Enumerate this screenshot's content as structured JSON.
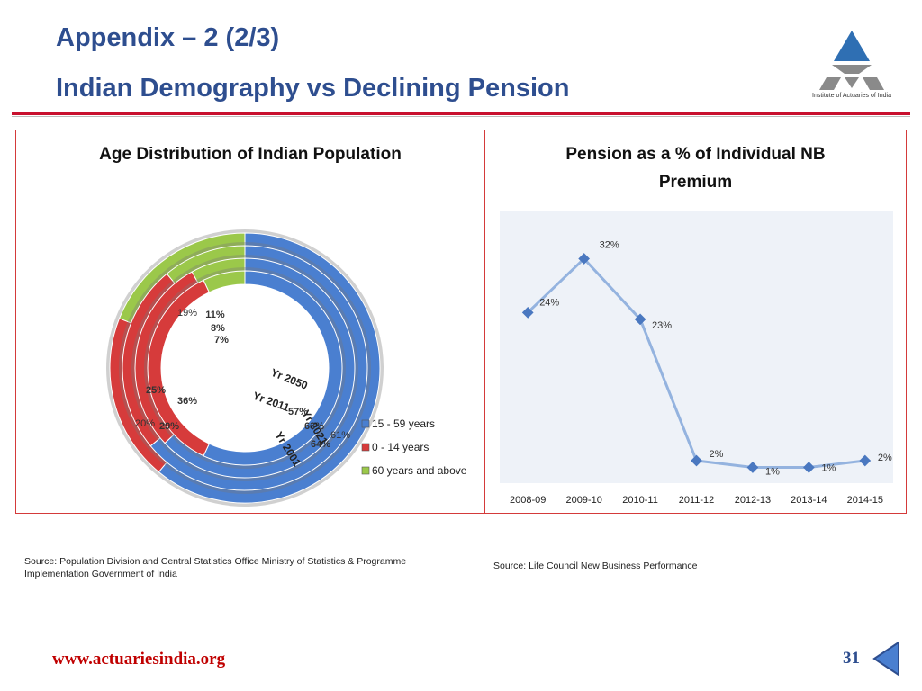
{
  "header": {
    "title_line1": "Appendix – 2 (2/3)",
    "title_line2": "Indian Demography vs Declining Pension",
    "logo_text": "Institute of Actuaries of India"
  },
  "left_panel": {
    "title": "Age Distribution of Indian Population"
  },
  "right_panel": {
    "title_line1": "Pension as a % of Individual NB",
    "title_line2": "Premium"
  },
  "sources": {
    "left_line1": "Source: Population Division and Central Statistics Office Ministry of Statistics & Programme",
    "left_line2": "Implementation Government of India",
    "right": "Source: Life Council New Business Performance"
  },
  "footer": {
    "url": "www.actuariesindia.org",
    "page": "31"
  },
  "colors": {
    "title": "#2e4e8f",
    "accent_red": "#c8102e",
    "blue": "#4a7fd0",
    "red": "#d63b3b",
    "green": "#9bc84a",
    "line": "#94b3df",
    "marker": "#4a78c0"
  },
  "chart_data": [
    {
      "type": "donut",
      "title": "Age Distribution of Indian Population",
      "categories": [
        "15 - 59 years",
        "0 - 14 years",
        "60 years and above"
      ],
      "series": [
        {
          "name": "Yr 2001",
          "values": [
            57,
            36,
            7
          ],
          "labels": [
            "57%",
            "36%",
            "7%"
          ]
        },
        {
          "name": "Yr 2011",
          "values": [
            63,
            29,
            8
          ],
          "labels": [
            "63%",
            "29%",
            "8%"
          ]
        },
        {
          "name": "Yr 2021",
          "values": [
            64,
            25,
            11
          ],
          "labels": [
            "64%",
            "25%",
            "11%"
          ]
        },
        {
          "name": "Yr 2050",
          "values": [
            61,
            20,
            19
          ],
          "labels": [
            "61%",
            "20%",
            "19%"
          ]
        }
      ],
      "legend": [
        "15 - 59 years",
        "0 - 14 years",
        "60 years and above"
      ],
      "legend_position": "right"
    },
    {
      "type": "line",
      "title": "Pension as a % of Individual NB Premium",
      "categories": [
        "2008-09",
        "2009-10",
        "2010-11",
        "2011-12",
        "2012-13",
        "2013-14",
        "2014-15"
      ],
      "values": [
        24,
        32,
        23,
        2,
        1,
        1,
        2
      ],
      "labels": [
        "24%",
        "32%",
        "23%",
        "2%",
        "1%",
        "1%",
        "2%"
      ],
      "ylim": [
        0,
        35
      ],
      "grid": false
    }
  ]
}
